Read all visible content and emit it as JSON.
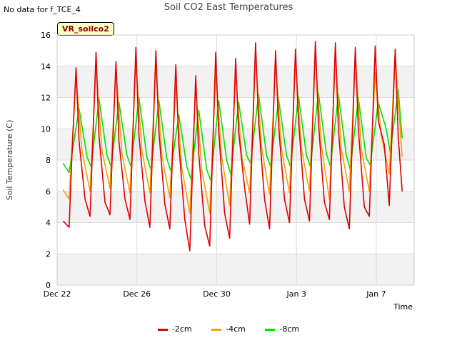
{
  "note": "No data for f_TCE_4",
  "badge": "VR_soilco2",
  "chart_data": {
    "type": "line",
    "title": "Soil CO2 East Temperatures",
    "xlabel": "Time",
    "ylabel": "Soil Temperature (C)",
    "xlim": [
      0,
      17.9
    ],
    "ylim": [
      0,
      16
    ],
    "yticks": [
      0,
      2,
      4,
      6,
      8,
      10,
      12,
      14,
      16
    ],
    "xticks": [
      {
        "label": "Dec 22",
        "day": 0
      },
      {
        "label": "Dec 26",
        "day": 4
      },
      {
        "label": "Dec 30",
        "day": 8
      },
      {
        "label": "Jan 3",
        "day": 12
      },
      {
        "label": "Jan 7",
        "day": 16
      }
    ],
    "grid": true,
    "legend_position": "bottom",
    "x_unit": "days since Dec 22",
    "series": [
      {
        "name": "-2cm",
        "color": "#dd0000",
        "x": [
          0.3,
          0.6,
          0.75,
          0.95,
          1.1,
          1.4,
          1.65,
          1.95,
          2.1,
          2.4,
          2.65,
          2.95,
          3.1,
          3.4,
          3.65,
          3.95,
          4.1,
          4.4,
          4.65,
          4.95,
          5.1,
          5.4,
          5.65,
          5.95,
          6.1,
          6.4,
          6.65,
          6.95,
          7.1,
          7.4,
          7.65,
          7.95,
          8.1,
          8.4,
          8.65,
          8.95,
          9.1,
          9.4,
          9.65,
          9.95,
          10.1,
          10.4,
          10.65,
          10.95,
          11.1,
          11.4,
          11.65,
          11.95,
          12.1,
          12.4,
          12.65,
          12.95,
          13.1,
          13.4,
          13.65,
          13.95,
          14.1,
          14.4,
          14.65,
          14.95,
          15.1,
          15.4,
          15.65,
          15.95,
          16.1,
          16.4,
          16.65,
          16.95,
          17.1,
          17.3
        ],
        "y": [
          4.1,
          3.7,
          8.5,
          13.9,
          9.2,
          5.5,
          4.4,
          14.9,
          9.5,
          5.3,
          4.5,
          14.3,
          9.2,
          5.5,
          4.2,
          15.2,
          9.6,
          5.4,
          3.7,
          15.0,
          9.8,
          5.2,
          3.6,
          14.1,
          9.0,
          4.2,
          2.2,
          13.4,
          8.4,
          3.8,
          2.5,
          14.9,
          9.8,
          4.6,
          3.0,
          14.5,
          9.8,
          6.2,
          3.9,
          15.5,
          10.5,
          5.5,
          3.6,
          15.0,
          10.2,
          5.5,
          4.0,
          15.1,
          10.5,
          5.5,
          4.1,
          15.6,
          10.4,
          5.3,
          4.2,
          15.5,
          10.0,
          5.0,
          3.6,
          15.2,
          10.0,
          5.0,
          4.4,
          15.3,
          10.5,
          9.0,
          5.1,
          15.1,
          9.5,
          6.0
        ]
      },
      {
        "name": "-4cm",
        "color": "#f5a300",
        "x": [
          0.3,
          0.6,
          0.95,
          1.25,
          1.65,
          1.95,
          2.25,
          2.65,
          2.95,
          3.25,
          3.65,
          3.95,
          4.25,
          4.65,
          4.95,
          5.25,
          5.65,
          5.95,
          6.25,
          6.65,
          6.95,
          7.25,
          7.65,
          7.95,
          8.25,
          8.65,
          8.95,
          9.25,
          9.65,
          9.95,
          10.25,
          10.65,
          10.95,
          11.25,
          11.65,
          11.95,
          12.25,
          12.65,
          12.95,
          13.25,
          13.65,
          13.95,
          14.25,
          14.65,
          14.95,
          15.25,
          15.65,
          15.95,
          16.25,
          16.65,
          16.95,
          17.3
        ],
        "y": [
          6.1,
          5.5,
          13.4,
          8.6,
          6.0,
          14.0,
          8.6,
          6.2,
          13.9,
          8.4,
          5.9,
          14.2,
          8.6,
          5.9,
          14.0,
          8.3,
          5.6,
          12.7,
          7.5,
          4.6,
          12.7,
          7.4,
          4.6,
          13.5,
          8.2,
          5.1,
          13.5,
          8.3,
          5.9,
          14.5,
          8.8,
          5.8,
          14.2,
          8.7,
          5.9,
          14.3,
          8.7,
          6.0,
          14.7,
          8.9,
          5.5,
          14.7,
          8.7,
          6.0,
          14.6,
          8.7,
          6.0,
          13.6,
          9.6,
          7.1,
          14.6,
          8.2
        ]
      },
      {
        "name": "-8cm",
        "color": "#00e000",
        "x": [
          0.3,
          0.6,
          1.1,
          1.5,
          1.7,
          2.1,
          2.5,
          2.7,
          3.1,
          3.5,
          3.7,
          4.1,
          4.5,
          4.7,
          5.1,
          5.5,
          5.7,
          6.1,
          6.5,
          6.7,
          7.1,
          7.5,
          7.7,
          8.1,
          8.5,
          8.7,
          9.1,
          9.5,
          9.7,
          10.1,
          10.5,
          10.7,
          11.1,
          11.5,
          11.7,
          12.1,
          12.5,
          12.7,
          13.1,
          13.5,
          13.7,
          14.1,
          14.5,
          14.7,
          15.1,
          15.5,
          15.7,
          16.1,
          16.5,
          16.7,
          17.1,
          17.3
        ],
        "y": [
          7.8,
          7.2,
          11.3,
          8.2,
          7.6,
          11.9,
          8.3,
          7.6,
          11.7,
          8.3,
          7.6,
          12.0,
          8.2,
          7.4,
          11.8,
          8.1,
          7.3,
          10.9,
          7.6,
          6.8,
          11.2,
          7.4,
          6.7,
          11.8,
          8.0,
          7.1,
          11.7,
          8.3,
          7.8,
          12.2,
          8.3,
          7.6,
          11.9,
          8.3,
          7.6,
          12.1,
          8.3,
          7.6,
          12.3,
          8.4,
          7.6,
          12.2,
          8.3,
          7.4,
          12.0,
          8.1,
          7.7,
          11.7,
          10.0,
          8.5,
          12.5,
          9.4
        ]
      }
    ]
  }
}
